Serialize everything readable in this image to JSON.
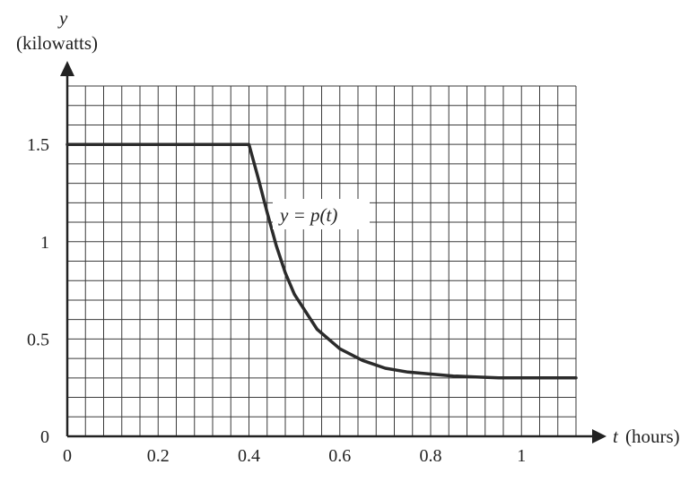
{
  "chart_data": {
    "type": "line",
    "ylabel_var": "y",
    "ylabel_units": "(kilowatts)",
    "xlabel_var": "t",
    "xlabel_units": "(hours)",
    "curve_label": "y = p(t)",
    "xlim": [
      0,
      1.12
    ],
    "ylim": [
      0,
      1.8
    ],
    "x_ticks": [
      "0",
      "0.2",
      "0.4",
      "0.6",
      "0.8",
      "1"
    ],
    "y_ticks": [
      "0",
      "0.5",
      "1",
      "1.5"
    ],
    "grid": true,
    "grid_step_x": 0.04,
    "grid_step_y": 0.1,
    "series": [
      {
        "x": [
          0,
          0.1,
          0.2,
          0.3,
          0.4,
          0.42,
          0.44,
          0.46,
          0.48,
          0.5,
          0.55,
          0.6,
          0.65,
          0.7,
          0.75,
          0.8,
          0.85,
          0.9,
          0.95,
          1.0,
          1.05,
          1.12
        ],
        "y": [
          1.5,
          1.5,
          1.5,
          1.5,
          1.5,
          1.33,
          1.15,
          0.98,
          0.84,
          0.73,
          0.55,
          0.45,
          0.39,
          0.35,
          0.33,
          0.32,
          0.31,
          0.305,
          0.3,
          0.3,
          0.3,
          0.3
        ]
      }
    ]
  }
}
